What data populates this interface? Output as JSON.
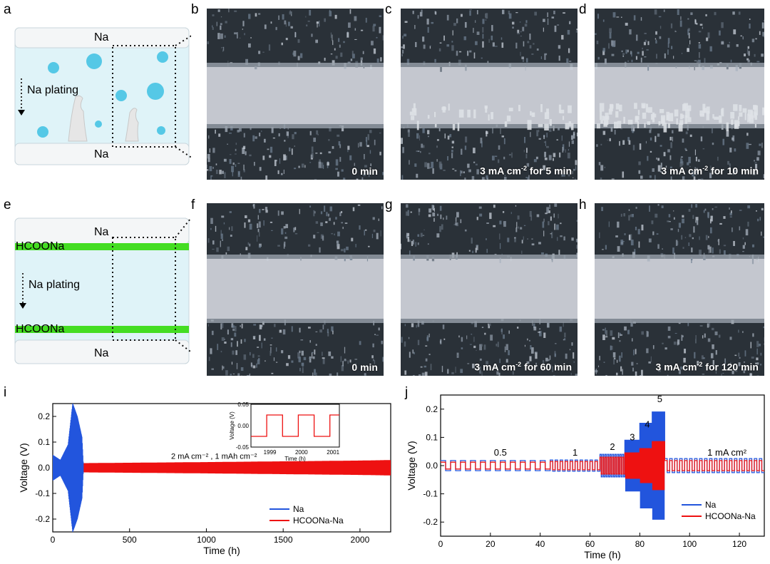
{
  "panels": {
    "a": {
      "label": "a",
      "top_electrode": "Na",
      "bottom_electrode": "Na",
      "process": "Na plating"
    },
    "b": {
      "label": "b",
      "caption": "0 min"
    },
    "c": {
      "label": "c",
      "caption_prefix": "3 mA cm",
      "caption_exp": "-2",
      "caption_suffix": " for 5 min"
    },
    "d": {
      "label": "d",
      "caption_prefix": "3 mA cm",
      "caption_exp": "-2",
      "caption_suffix": " for 10 min"
    },
    "e": {
      "label": "e",
      "top_electrode": "Na",
      "bottom_electrode": "Na",
      "layer_top": "HCOONa",
      "layer_bottom": "HCOONa",
      "process": "Na plating"
    },
    "f": {
      "label": "f",
      "caption": "0 min"
    },
    "g": {
      "label": "g",
      "caption_prefix": "3 mA cm",
      "caption_exp": "-2",
      "caption_suffix": " for 60 min"
    },
    "h": {
      "label": "h",
      "caption_prefix": "3 mA cm",
      "caption_exp": "-2",
      "caption_suffix": " for 120 min"
    },
    "i": {
      "label": "i"
    },
    "j": {
      "label": "j"
    }
  },
  "colors": {
    "na": "#2255dd",
    "hcoona": "#ee1111",
    "electrolyte": "#dff3f8",
    "layer": "#44dd22",
    "bubble": "#55c8e6"
  },
  "chart_data": [
    {
      "id": "i",
      "type": "line",
      "xlabel": "Time (h)",
      "ylabel": "Voltage (V)",
      "xlim": [
        0,
        2200
      ],
      "ylim": [
        -0.25,
        0.25
      ],
      "xticks": [
        0,
        500,
        1000,
        1500,
        2000
      ],
      "yticks": [
        -0.2,
        -0.1,
        0.0,
        0.1,
        0.2
      ],
      "yticklabels": [
        "-0.2",
        "-0.1",
        "0.0",
        "0.1",
        "0.2"
      ],
      "annotation": "2 mA cm⁻² ,  1 mAh cm⁻²",
      "series": [
        {
          "name": "Na",
          "color": "#2255dd",
          "x": [
            0,
            50,
            100,
            130,
            160,
            190,
            200
          ],
          "amplitude": [
            0.05,
            0.03,
            0.09,
            0.25,
            0.2,
            0.12,
            0.0
          ]
        },
        {
          "name": "HCOONa-Na",
          "color": "#ee1111",
          "x": [
            0,
            200,
            1000,
            2000,
            2200
          ],
          "amplitude": [
            0.015,
            0.018,
            0.022,
            0.028,
            0.03
          ]
        }
      ],
      "inset": {
        "xlabel": "Time (h)",
        "ylabel": "Voltage (V)",
        "xlim": [
          1998.4,
          2001.2
        ],
        "ylim": [
          -0.05,
          0.05
        ],
        "xticks": [
          1999,
          2000,
          2001
        ],
        "yticks": [
          -0.05,
          0.0,
          0.05
        ],
        "yticklabels": [
          "-0.05",
          "0.00",
          "0.05"
        ],
        "x": [
          1998.4,
          1998.9,
          1998.9,
          1999.4,
          1999.4,
          1999.9,
          1999.9,
          2000.4,
          2000.4,
          2000.9,
          2000.9,
          2001.2
        ],
        "y": [
          -0.025,
          -0.025,
          0.025,
          0.025,
          -0.025,
          -0.025,
          0.025,
          0.025,
          -0.025,
          -0.025,
          0.025,
          0.025
        ]
      }
    },
    {
      "id": "j",
      "type": "line",
      "xlabel": "Time (h)",
      "ylabel": "Voltage (V)",
      "xlim": [
        0,
        130
      ],
      "ylim": [
        -0.25,
        0.25
      ],
      "xticks": [
        0,
        20,
        40,
        60,
        80,
        100,
        120
      ],
      "yticks": [
        -0.2,
        -0.1,
        0.0,
        0.1,
        0.2
      ],
      "yticklabels": [
        "-0.2",
        "-0.1",
        "0.0",
        "0.1",
        "0.2"
      ],
      "rate_labels": [
        {
          "text": "0.5",
          "x": 24,
          "y": 0.035
        },
        {
          "text": "1",
          "x": 54,
          "y": 0.035
        },
        {
          "text": "2",
          "x": 69,
          "y": 0.055
        },
        {
          "text": "3",
          "x": 77,
          "y": 0.09
        },
        {
          "text": "4",
          "x": 83,
          "y": 0.135
        },
        {
          "text": "5",
          "x": 88,
          "y": 0.225
        },
        {
          "text": "1 mA cm²",
          "x": 115,
          "y": 0.035
        }
      ],
      "segments": [
        {
          "start": 0,
          "end": 44,
          "period": 4,
          "na_amp": 0.018,
          "hc_amp": 0.012
        },
        {
          "start": 44,
          "end": 64,
          "period": 2,
          "na_amp": 0.02,
          "hc_amp": 0.015
        },
        {
          "start": 64,
          "end": 74,
          "period": 1,
          "na_amp": 0.04,
          "hc_amp": 0.03
        },
        {
          "start": 74,
          "end": 80,
          "period": 0.66,
          "na_amp": 0.09,
          "hc_amp": 0.045
        },
        {
          "start": 80,
          "end": 85,
          "period": 0.5,
          "na_amp": 0.15,
          "hc_amp": 0.06
        },
        {
          "start": 85,
          "end": 90,
          "period": 0.4,
          "na_amp": 0.19,
          "hc_amp": 0.085
        },
        {
          "start": 90,
          "end": 130,
          "period": 2,
          "na_amp": 0.025,
          "hc_amp": 0.018
        }
      ],
      "series": [
        {
          "name": "Na",
          "color": "#2255dd"
        },
        {
          "name": "HCOONa-Na",
          "color": "#ee1111"
        }
      ]
    }
  ]
}
